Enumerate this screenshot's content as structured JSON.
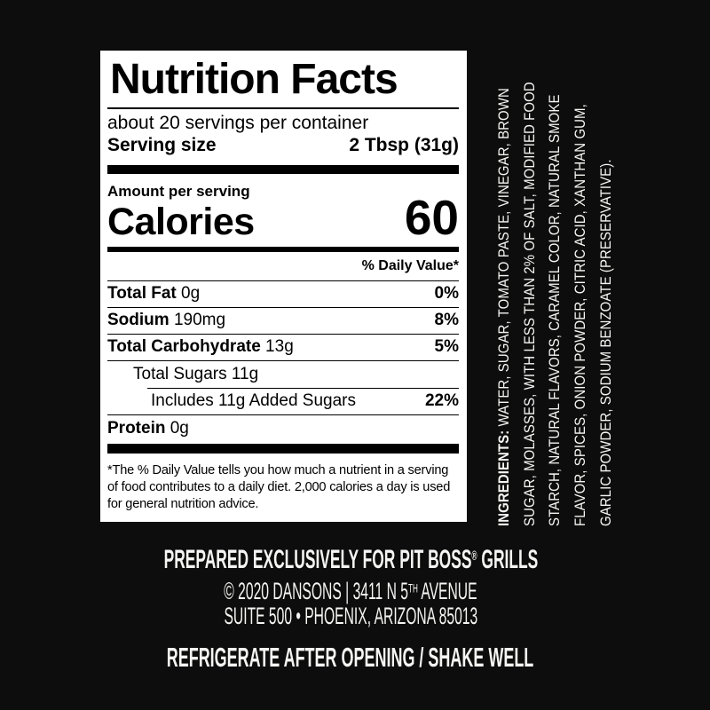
{
  "colors": {
    "background": "#0d0d0d",
    "panel_bg": "#ffffff",
    "panel_text": "#000000",
    "inverse_text": "#f5f5f3"
  },
  "panel": {
    "title": "Nutrition Facts",
    "servings_per_container": "about 20 servings per container",
    "serving_size_label": "Serving size",
    "serving_size_value": "2 Tbsp (31g)",
    "amount_per_serving_label": "Amount per serving",
    "calories_label": "Calories",
    "calories_value": "60",
    "daily_value_header": "% Daily Value*",
    "rows": [
      {
        "bold": "Total Fat",
        "rest": " 0g",
        "dv": "0%"
      },
      {
        "bold": "Sodium",
        "rest": " 190mg",
        "dv": "8%"
      },
      {
        "bold": "Total Carbohydrate",
        "rest": " 13g",
        "dv": "5%"
      },
      {
        "bold": "",
        "rest": "Total Sugars 11g",
        "dv": ""
      },
      {
        "bold": "",
        "rest": "Includes 11g Added Sugars",
        "dv": "22%"
      },
      {
        "bold": "Protein",
        "rest": " 0g",
        "dv": ""
      }
    ],
    "footnote": "*The % Daily Value tells you how much a nutrient in a serving of food contributes to a daily diet. 2,000 calories a day is used for general nutrition advice."
  },
  "ingredients": {
    "label": "INGREDIENTS:",
    "lines": [
      " WATER, SUGAR, TOMATO PASTE, VINEGAR, BROWN",
      "SUGAR, MOLASSES, WITH LESS THAN 2% OF SALT, MODIFIED FOOD",
      "STARCH, NATURAL FLAVORS, CARAMEL COLOR, NATURAL SMOKE",
      "FLAVOR, SPICES, ONION POWDER, CITRIC ACID, XANTHAN GUM,",
      "GARLIC POWDER, SODIUM BENZOATE (PRESERVATIVE)."
    ]
  },
  "footer": {
    "prepared_prefix": "PREPARED EXCLUSIVELY FOR PIT BOSS",
    "prepared_reg": "®",
    "prepared_suffix": " GRILLS",
    "copyright_prefix": "© 2020 DANSONS  |  3411 N 5",
    "copyright_sup": "TH",
    "copyright_suffix": " AVENUE",
    "address": "SUITE 500 • PHOENIX, ARIZONA 85013",
    "refrigerate": "REFRIGERATE AFTER OPENING / SHAKE WELL"
  }
}
